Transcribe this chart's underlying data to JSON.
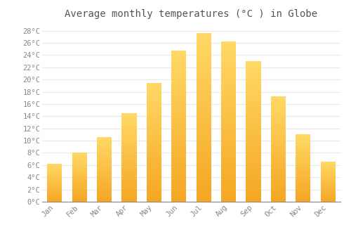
{
  "title": "Average monthly temperatures (°C ) in Globe",
  "months": [
    "Jan",
    "Feb",
    "Mar",
    "Apr",
    "May",
    "Jun",
    "Jul",
    "Aug",
    "Sep",
    "Oct",
    "Nov",
    "Dec"
  ],
  "temperatures": [
    6.2,
    8.1,
    10.6,
    14.5,
    19.5,
    24.7,
    27.6,
    26.2,
    23.0,
    17.3,
    11.0,
    6.6
  ],
  "bar_color_bottom": "#F5A623",
  "bar_color_top": "#FFD966",
  "ylim": [
    0,
    29
  ],
  "yticks": [
    0,
    2,
    4,
    6,
    8,
    10,
    12,
    14,
    16,
    18,
    20,
    22,
    24,
    26,
    28
  ],
  "ytick_labels": [
    "0°C",
    "2°C",
    "4°C",
    "6°C",
    "8°C",
    "10°C",
    "12°C",
    "14°C",
    "16°C",
    "18°C",
    "20°C",
    "22°C",
    "24°C",
    "26°C",
    "28°C"
  ],
  "title_fontsize": 10,
  "tick_fontsize": 7.5,
  "background_color": "#FFFFFF",
  "grid_color": "#E8E8E8"
}
